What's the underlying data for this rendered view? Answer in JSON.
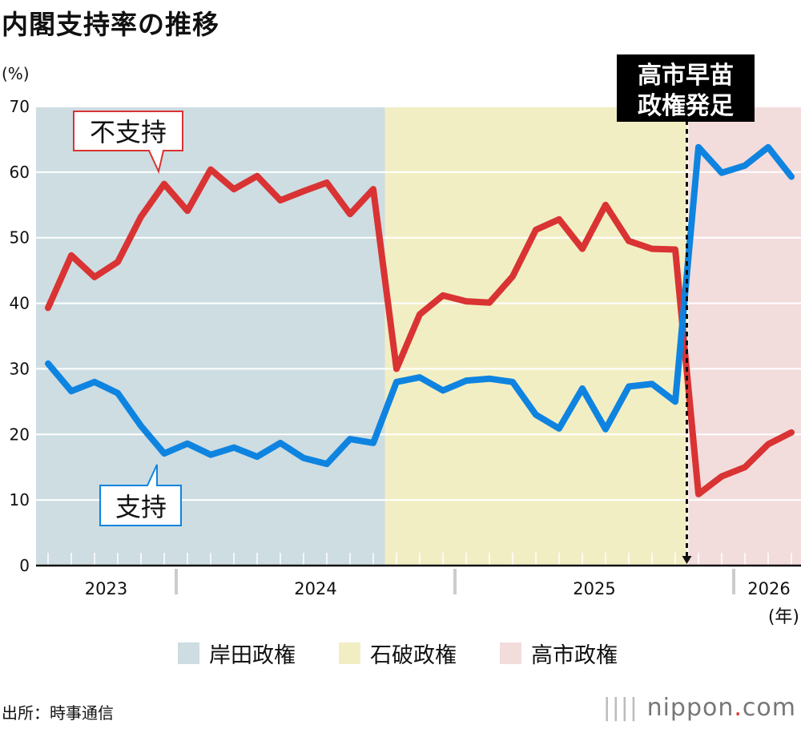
{
  "title": "内閣支持率の推移",
  "unit_label": "(%)",
  "x_unit_label": "(年)",
  "source": "出所：時事通信",
  "logo": {
    "brand": "nippon",
    "dot": ".",
    "tld": "com"
  },
  "annotation": {
    "line1": "高市早苗",
    "line2": "政権発足"
  },
  "callouts": {
    "disapprove": "不支持",
    "approve": "支持"
  },
  "legend": [
    {
      "label": "岸田政権",
      "color": "#cddde2"
    },
    {
      "label": "石破政権",
      "color": "#f2eec4"
    },
    {
      "label": "高市政権",
      "color": "#f3dcdc"
    }
  ],
  "chart_data": {
    "type": "line",
    "title": "内閣支持率の推移",
    "ylabel": "(%)",
    "xlabel": "(年)",
    "ylim": [
      0,
      70
    ],
    "yticks": [
      0,
      10,
      20,
      30,
      40,
      50,
      60,
      70
    ],
    "grid": true,
    "x_years": [
      "2023",
      "2024",
      "2025",
      "2026"
    ],
    "x": [
      "2023-07",
      "2023-08",
      "2023-09",
      "2023-10",
      "2023-11",
      "2023-12",
      "2024-01",
      "2024-02",
      "2024-03",
      "2024-04",
      "2024-05",
      "2024-06",
      "2024-07",
      "2024-08",
      "2024-09",
      "2024-10",
      "2024-11",
      "2024-12",
      "2025-01",
      "2025-02",
      "2025-03",
      "2025-04",
      "2025-05",
      "2025-06",
      "2025-07",
      "2025-08",
      "2025-09",
      "2025-10",
      "2025-11",
      "2025-12",
      "2026-01",
      "2026-02",
      "2026-03"
    ],
    "periods": [
      {
        "name": "岸田政権",
        "from": "2023-07",
        "to": "2024-09",
        "color": "#cddde2"
      },
      {
        "name": "石破政権",
        "from": "2024-10",
        "to": "2025-10",
        "color": "#f2eec4"
      },
      {
        "name": "高市政権",
        "from": "2025-11",
        "to": "2026-03",
        "color": "#f3dcdc"
      }
    ],
    "series": [
      {
        "name": "不支持",
        "color": "#d93333",
        "values": [
          39.3,
          47.3,
          44.0,
          46.3,
          53.2,
          58.2,
          54.1,
          60.4,
          57.4,
          59.4,
          55.7,
          57.1,
          58.4,
          53.6,
          57.4,
          30.0,
          38.3,
          41.2,
          40.3,
          40.1,
          44.1,
          51.2,
          52.8,
          48.3,
          55.0,
          49.5,
          48.3,
          48.2,
          10.9,
          13.6,
          15.0,
          18.5,
          20.3
        ]
      },
      {
        "name": "支持",
        "color": "#0e84e0",
        "values": [
          30.8,
          26.6,
          28.0,
          26.3,
          21.3,
          17.1,
          18.6,
          16.9,
          18.0,
          16.6,
          18.7,
          16.4,
          15.5,
          19.3,
          18.7,
          28.0,
          28.7,
          26.7,
          28.2,
          28.5,
          28.0,
          23.0,
          20.9,
          27.0,
          20.8,
          27.3,
          27.7,
          25.0,
          63.8,
          59.9,
          61.0,
          63.8,
          59.3
        ]
      }
    ]
  }
}
